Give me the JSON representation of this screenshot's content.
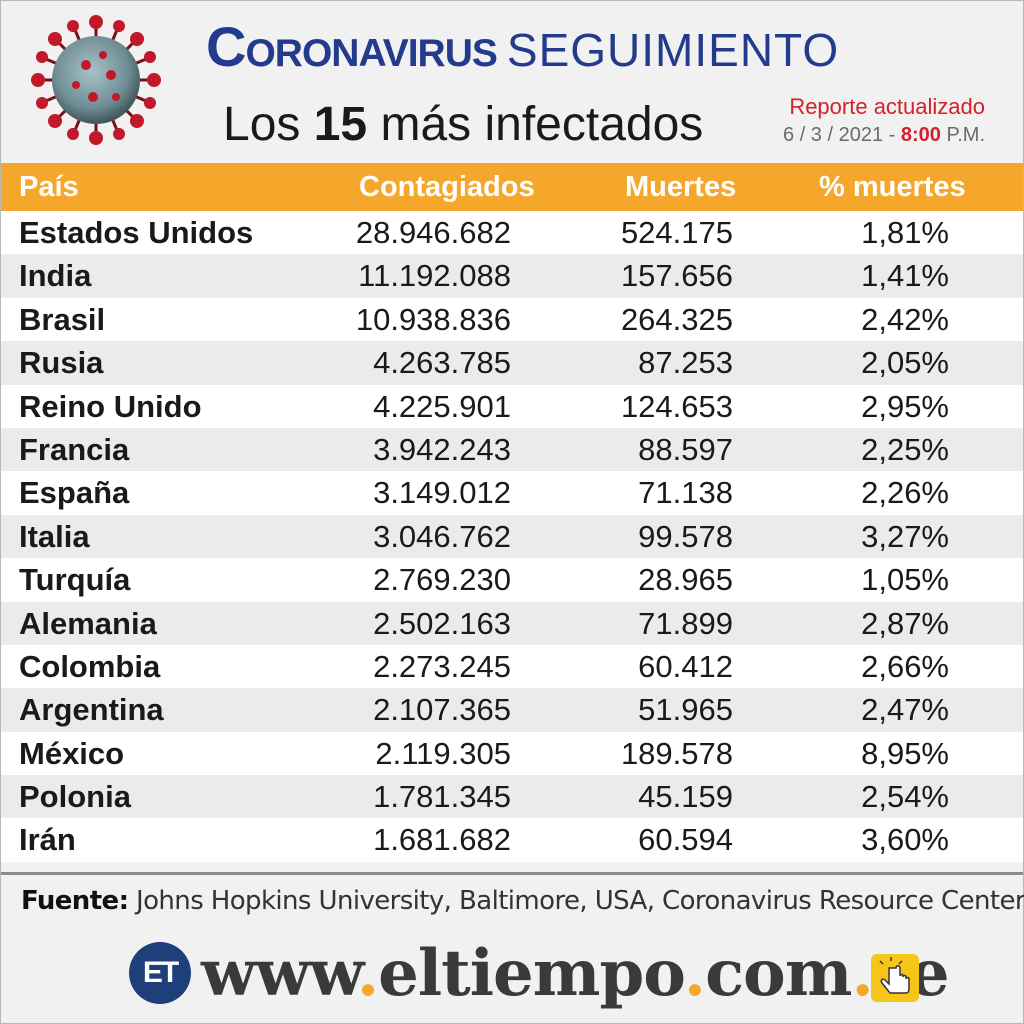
{
  "header": {
    "title_main": "Coronavirus",
    "title_secondary": "SEGUIMIENTO",
    "subtitle_prefix": "Los ",
    "subtitle_number": "15",
    "subtitle_suffix": " más infectados",
    "report_label": "Reporte actualizado",
    "report_date": "6 / 3 / 2021 - ",
    "report_time": "8:00",
    "report_ampm": " P.M."
  },
  "table": {
    "columns": [
      "País",
      "Contagiados",
      "Muertes",
      "% muertes"
    ],
    "rows": [
      {
        "country": "Estados Unidos",
        "cases": "28.946.682",
        "deaths": "524.175",
        "pct": "1,81%"
      },
      {
        "country": "India",
        "cases": "11.192.088",
        "deaths": "157.656",
        "pct": "1,41%"
      },
      {
        "country": "Brasil",
        "cases": "10.938.836",
        "deaths": "264.325",
        "pct": "2,42%"
      },
      {
        "country": "Rusia",
        "cases": "4.263.785",
        "deaths": "87.253",
        "pct": "2,05%"
      },
      {
        "country": "Reino Unido",
        "cases": "4.225.901",
        "deaths": "124.653",
        "pct": "2,95%"
      },
      {
        "country": "Francia",
        "cases": "3.942.243",
        "deaths": "88.597",
        "pct": "2,25%"
      },
      {
        "country": "España",
        "cases": "3.149.012",
        "deaths": "71.138",
        "pct": "2,26%"
      },
      {
        "country": "Italia",
        "cases": "3.046.762",
        "deaths": "99.578",
        "pct": "3,27%"
      },
      {
        "country": "Turquía",
        "cases": "2.769.230",
        "deaths": "28.965",
        "pct": "1,05%"
      },
      {
        "country": "Alemania",
        "cases": "2.502.163",
        "deaths": "71.899",
        "pct": "2,87%"
      },
      {
        "country": "Colombia",
        "cases": "2.273.245",
        "deaths": "60.412",
        "pct": "2,66%"
      },
      {
        "country": "Argentina",
        "cases": "2.107.365",
        "deaths": "51.965",
        "pct": "2,47%"
      },
      {
        "country": "México",
        "cases": "2.119.305",
        "deaths": "189.578",
        "pct": "8,95%"
      },
      {
        "country": "Polonia",
        "cases": "1.781.345",
        "deaths": "45.159",
        "pct": "2,54%"
      },
      {
        "country": "Irán",
        "cases": "1.681.682",
        "deaths": "60.594",
        "pct": "3,60%"
      }
    ]
  },
  "source": {
    "label": "Fuente:",
    "text": " Johns Hopkins University, Baltimore, USA, Coronavirus Resource Center"
  },
  "footer": {
    "logo_text": "ET",
    "url_parts": [
      "www",
      ".",
      "eltiempo",
      ".",
      "com",
      ".",
      "ve"
    ],
    "logo_icon": "et-logo-icon",
    "hand_icon": "pointing-hand-icon"
  },
  "colors": {
    "accent": "#f5a72c",
    "title_blue": "#243a8c",
    "report_red": "#d4202a",
    "logo_blue": "#1e3f7a"
  }
}
